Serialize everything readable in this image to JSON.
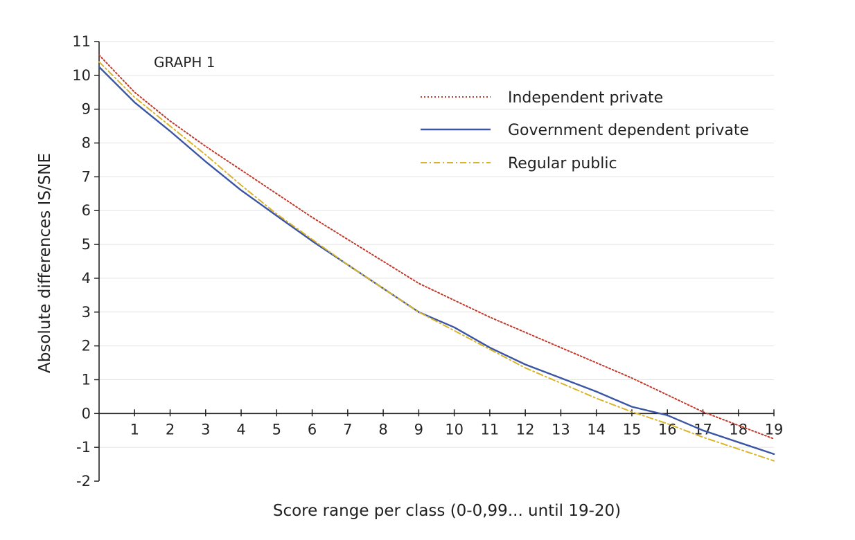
{
  "chart_data": {
    "type": "line",
    "title": "GRAPH 1",
    "xlabel": "Score range per class (0-0,99... until 19-20)",
    "ylabel": "Absolute differences IS/SNE",
    "xlim": [
      0,
      19
    ],
    "ylim": [
      -2,
      11
    ],
    "x_ticks": [
      "1",
      "2",
      "3",
      "4",
      "5",
      "6",
      "7",
      "8",
      "9",
      "10",
      "11",
      "12",
      "13",
      "14",
      "15",
      "16",
      "17",
      "18",
      "19"
    ],
    "y_ticks": [
      "-2",
      "-1",
      "0",
      "1",
      "2",
      "3",
      "4",
      "5",
      "6",
      "7",
      "8",
      "9",
      "10",
      "11"
    ],
    "grid": "horizontal",
    "legend_position": "top-right",
    "x": [
      0,
      1,
      2,
      3,
      4,
      5,
      6,
      7,
      8,
      9,
      10,
      11,
      12,
      13,
      14,
      15,
      16,
      17,
      18,
      19
    ],
    "series": [
      {
        "name": "Independent private",
        "color": "#c0392b",
        "style": "dotted",
        "values": [
          10.6,
          9.5,
          8.65,
          7.9,
          7.2,
          6.5,
          5.8,
          5.15,
          4.5,
          3.85,
          3.35,
          2.85,
          2.4,
          1.95,
          1.5,
          1.05,
          0.55,
          0.05,
          -0.35,
          -0.75
        ]
      },
      {
        "name": "Government dependent private",
        "color": "#3a55a4",
        "style": "solid",
        "values": [
          10.25,
          9.2,
          8.35,
          7.45,
          6.6,
          5.85,
          5.1,
          4.4,
          3.7,
          3.0,
          2.55,
          1.95,
          1.45,
          1.05,
          0.65,
          0.2,
          -0.05,
          -0.5,
          -0.85,
          -1.2
        ]
      },
      {
        "name": "Regular public",
        "color": "#d9b42a",
        "style": "dashdot",
        "values": [
          10.4,
          9.35,
          8.5,
          7.65,
          6.75,
          5.9,
          5.15,
          4.4,
          3.7,
          3.0,
          2.45,
          1.9,
          1.35,
          0.9,
          0.45,
          0.05,
          -0.3,
          -0.7,
          -1.05,
          -1.4
        ]
      }
    ]
  }
}
